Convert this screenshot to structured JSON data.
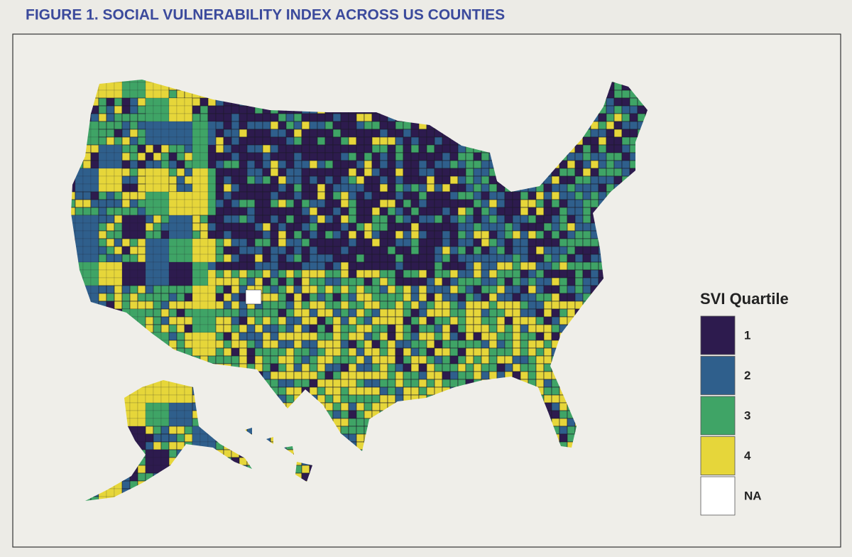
{
  "title": "FIGURE 1. SOCIAL VULNERABILITY INDEX ACROSS US COUNTIES",
  "legend": {
    "title": "SVI Quartile",
    "items": [
      {
        "label": "1",
        "color": "#2d1b4e"
      },
      {
        "label": "2",
        "color": "#2f5f8c"
      },
      {
        "label": "3",
        "color": "#3fa466"
      },
      {
        "label": "4",
        "color": "#e6d63a"
      },
      {
        "label": "NA",
        "color": "#ffffff"
      }
    ]
  }
}
